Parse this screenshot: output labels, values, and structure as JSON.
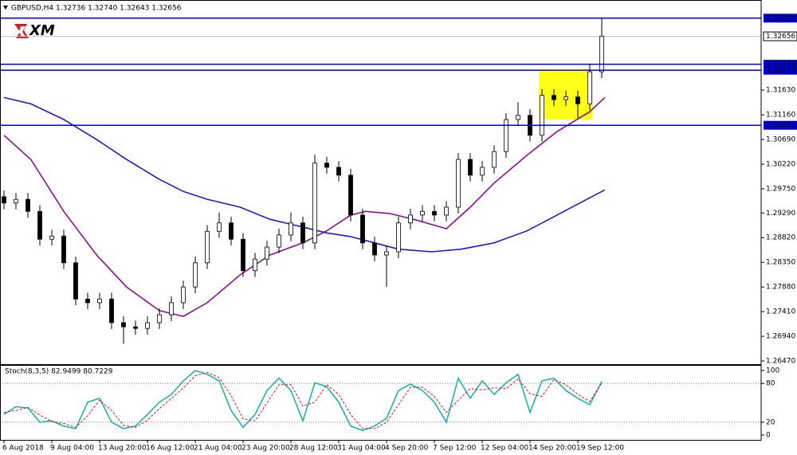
{
  "chart_data": [
    {
      "type": "candlestick",
      "title": "GBPUSD,H4  1.32736 1.32740 1.32643 1.32656",
      "logo": "XM",
      "x": [
        0,
        4,
        8,
        12,
        16,
        20,
        24,
        28,
        32,
        36,
        40,
        44,
        48,
        52,
        56,
        60,
        64,
        68,
        72,
        76,
        80,
        84,
        88,
        92,
        96,
        100,
        104,
        108,
        112,
        116,
        120,
        124,
        128,
        132,
        136,
        140,
        144,
        148,
        152,
        156,
        160,
        164,
        168,
        172,
        176,
        180,
        184,
        188,
        192,
        196,
        200
      ],
      "open": [
        1.296,
        1.2948,
        1.2955,
        1.2932,
        1.2879,
        1.2885,
        1.2834,
        1.2765,
        1.2758,
        1.2765,
        1.272,
        1.2712,
        1.2709,
        1.272,
        1.2735,
        1.2758,
        1.2788,
        1.2834,
        1.2894,
        1.291,
        1.2879,
        1.2819,
        1.2841,
        1.2864,
        1.2887,
        1.291,
        1.2872,
        1.3024,
        1.3016,
        1.3001,
        1.2925,
        1.2872,
        1.2849,
        1.2855,
        1.291,
        1.2925,
        1.2932,
        1.2925,
        1.294,
        1.3031,
        1.3001,
        1.3016,
        1.3046,
        1.3107,
        1.3115,
        1.3077,
        1.3153,
        1.3145,
        1.315,
        1.3137,
        1.3198
      ],
      "high": [
        1.2972,
        1.2967,
        1.2967,
        1.2944,
        1.2897,
        1.2897,
        1.2846,
        1.2777,
        1.2777,
        1.2777,
        1.2732,
        1.2724,
        1.2732,
        1.2747,
        1.277,
        1.28,
        1.2846,
        1.2906,
        1.293,
        1.2922,
        1.2891,
        1.2853,
        1.2876,
        1.2899,
        1.293,
        1.2922,
        1.304,
        1.3036,
        1.3028,
        1.3013,
        1.2937,
        1.2884,
        1.2867,
        1.2922,
        1.2937,
        1.2944,
        1.2944,
        1.2952,
        1.3043,
        1.3043,
        1.3028,
        1.3058,
        1.3119,
        1.314,
        1.3127,
        1.3165,
        1.3165,
        1.3162,
        1.3162,
        1.3212,
        1.33
      ],
      "low": [
        1.2936,
        1.2936,
        1.292,
        1.2867,
        1.2867,
        1.2822,
        1.2753,
        1.2746,
        1.2746,
        1.2708,
        1.268,
        1.2697,
        1.2697,
        1.2708,
        1.2723,
        1.2746,
        1.2776,
        1.2822,
        1.2882,
        1.2867,
        1.2807,
        1.2807,
        1.2829,
        1.2852,
        1.2875,
        1.286,
        1.286,
        1.3004,
        1.2989,
        1.2913,
        1.286,
        1.2837,
        1.2788,
        1.2843,
        1.2898,
        1.2913,
        1.2913,
        1.2913,
        1.2928,
        1.2989,
        1.2989,
        1.3004,
        1.3034,
        1.3095,
        1.3065,
        1.3065,
        1.3133,
        1.3133,
        1.311,
        1.3125,
        1.3186
      ],
      "close": [
        1.2948,
        1.2955,
        1.2932,
        1.2879,
        1.2885,
        1.2834,
        1.2765,
        1.2758,
        1.2765,
        1.272,
        1.2712,
        1.2709,
        1.272,
        1.2735,
        1.2758,
        1.2788,
        1.2834,
        1.2894,
        1.291,
        1.2879,
        1.2819,
        1.2841,
        1.2864,
        1.2887,
        1.291,
        1.2872,
        1.3024,
        1.3016,
        1.3001,
        1.2925,
        1.2872,
        1.2849,
        1.2855,
        1.291,
        1.2925,
        1.2932,
        1.2925,
        1.294,
        1.3031,
        1.3001,
        1.3016,
        1.3046,
        1.3107,
        1.3115,
        1.3077,
        1.3153,
        1.3145,
        1.315,
        1.3137,
        1.3198,
        1.3266
      ],
      "up_color": "#ffffff",
      "down_color": "#000000",
      "series": [
        {
          "color": "#8e0f8e",
          "x": [
            0,
            9,
            20,
            31,
            41,
            52,
            60,
            68,
            79,
            89,
            100,
            108,
            116,
            121,
            129,
            137,
            148,
            156,
            164,
            175,
            185,
            196,
            201
          ],
          "values": [
            1.3077,
            1.3031,
            1.2932,
            1.2849,
            1.2788,
            1.2743,
            1.2732,
            1.2758,
            1.2811,
            1.2849,
            1.2872,
            1.2895,
            1.2925,
            1.2932,
            1.2928,
            1.2917,
            1.2899,
            1.294,
            1.2986,
            1.3039,
            1.3084,
            1.3122,
            1.3149
          ]
        },
        {
          "color": "#1b1bd6",
          "x": [
            0,
            9,
            20,
            31,
            41,
            52,
            60,
            68,
            79,
            89,
            100,
            108,
            116,
            124,
            132,
            143,
            153,
            164,
            175,
            185,
            196,
            201
          ],
          "values": [
            1.3149,
            1.3137,
            1.3107,
            1.3069,
            1.3031,
            1.2993,
            1.297,
            1.2955,
            1.294,
            1.2917,
            1.2902,
            1.2891,
            1.2884,
            1.2872,
            1.286,
            1.2855,
            1.286,
            1.2872,
            1.2895,
            1.2925,
            1.2958,
            1.2973
          ]
        }
      ],
      "hlines": [
        {
          "value": 1.33002,
          "label": "1.33002",
          "color": "#0000cc"
        },
        {
          "value": 1.32124,
          "label": "1.32124",
          "color": "#0000cc"
        },
        {
          "value": 1.3201,
          "label": "1.32010",
          "color": "#0000cc"
        },
        {
          "value": 1.30961,
          "label": "1.30961",
          "color": "#0000cc"
        }
      ],
      "current_price": {
        "value": 1.32656,
        "label": "1.32656"
      },
      "rectangle": {
        "x": [
          179,
          197
        ],
        "y": [
          1.3107,
          1.3201
        ],
        "color": "#ffff1a"
      },
      "xlim": [
        -1.33,
        253.33
      ],
      "ylim": [
        1.26394,
        1.33348
      ],
      "yticks": [
        {
          "value": 1.3163,
          "label": "1.31630"
        },
        {
          "value": 1.3116,
          "label": "1.31160"
        },
        {
          "value": 1.3069,
          "label": "1.30690"
        },
        {
          "value": 1.3022,
          "label": "1.30220"
        },
        {
          "value": 1.2975,
          "label": "1.29750"
        },
        {
          "value": 1.2929,
          "label": "1.29290"
        },
        {
          "value": 1.2882,
          "label": "1.28820"
        },
        {
          "value": 1.2835,
          "label": "1.28350"
        },
        {
          "value": 1.2788,
          "label": "1.27880"
        },
        {
          "value": 1.2741,
          "label": "1.27410"
        },
        {
          "value": 1.2694,
          "label": "1.26940"
        },
        {
          "value": 1.2647,
          "label": "1.26470"
        }
      ]
    },
    {
      "type": "line",
      "title": "Stoch(8,3,5) 82.9499 80.7229",
      "x": [
        0,
        4,
        8,
        12,
        16,
        20,
        24,
        28,
        32,
        36,
        40,
        44,
        48,
        52,
        56,
        60,
        64,
        68,
        72,
        76,
        80,
        84,
        88,
        92,
        96,
        100,
        104,
        108,
        112,
        116,
        120,
        124,
        128,
        132,
        136,
        140,
        144,
        148,
        152,
        156,
        160,
        164,
        168,
        172,
        176,
        180,
        184,
        188,
        192,
        196,
        200
      ],
      "series": [
        {
          "color": "#20b2aa",
          "dashed": false,
          "values": [
            32,
            44,
            42,
            20,
            22,
            14,
            10,
            51,
            57,
            20,
            10,
            14,
            32,
            51,
            63,
            84,
            100,
            94,
            84,
            38,
            12,
            32,
            69,
            88,
            69,
            22,
            81,
            75,
            51,
            14,
            7,
            14,
            26,
            69,
            79,
            69,
            51,
            20,
            88,
            57,
            84,
            63,
            81,
            94,
            35,
            84,
            88,
            69,
            57,
            47,
            82.9499
          ]
        },
        {
          "color": "#e8141e",
          "dashed": true,
          "values": [
            35,
            38,
            43,
            31,
            21,
            18,
            12,
            30,
            54,
            38,
            15,
            12,
            23,
            41,
            57,
            73,
            92,
            97,
            89,
            61,
            25,
            22,
            50,
            78,
            78,
            45,
            51,
            78,
            63,
            32,
            10,
            10,
            20,
            47,
            74,
            74,
            60,
            35,
            54,
            72,
            70,
            73,
            72,
            87,
            64,
            60,
            86,
            78,
            63,
            52,
            80.7229
          ]
        }
      ],
      "levels": [
        80,
        20
      ],
      "xlim": [
        -1.33,
        253.33
      ],
      "ylim": [
        -7.4,
        108.6
      ],
      "yticks": [
        100,
        80,
        20,
        0
      ],
      "xticks": [
        {
          "value": 0,
          "label": "6 Aug 2018"
        },
        {
          "value": 16,
          "label": "9 Aug 04:00"
        },
        {
          "value": 32,
          "label": "13 Aug 20:00"
        },
        {
          "value": 48,
          "label": "16 Aug 12:00"
        },
        {
          "value": 64,
          "label": "21 Aug 04:00"
        },
        {
          "value": 80,
          "label": "23 Aug 20:00"
        },
        {
          "value": 96,
          "label": "28 Aug 12:00"
        },
        {
          "value": 112,
          "label": "31 Aug 04:00"
        },
        {
          "value": 128,
          "label": "4 Sep 20:00"
        },
        {
          "value": 144,
          "label": "7 Sep 12:00"
        },
        {
          "value": 160,
          "label": "12 Sep 04:00"
        },
        {
          "value": 176,
          "label": "14 Sep 20:00"
        },
        {
          "value": 192,
          "label": "19 Sep 12:00"
        }
      ]
    }
  ]
}
